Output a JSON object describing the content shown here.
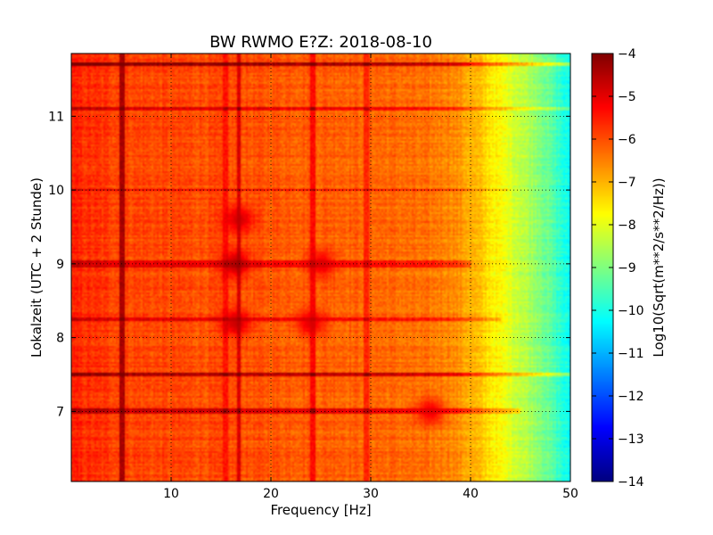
{
  "chart_data": {
    "type": "heatmap",
    "title": "BW RWMO E?Z: 2018-08-10",
    "xlabel": "Frequency [Hz]",
    "ylabel": "Lokalzeit (UTC + 2 Stunde)",
    "xlim": [
      0,
      50
    ],
    "ylim": [
      11.85,
      6.05
    ],
    "y_inverted": true,
    "x_ticks": [
      10,
      20,
      30,
      40,
      50
    ],
    "x_tick_labels": [
      "10",
      "20",
      "30",
      "40",
      "50"
    ],
    "y_ticks": [
      7,
      8,
      9,
      10,
      11
    ],
    "y_tick_labels": [
      "7",
      "8",
      "9",
      "10",
      "11"
    ],
    "grid": true,
    "colormap": "jet",
    "colorbar": {
      "label": "Log10(Sqrt(m**2/s**2/Hz))",
      "min": -14,
      "max": -4,
      "ticks": [
        -4,
        -5,
        -6,
        -7,
        -8,
        -9,
        -10,
        -11,
        -12,
        -13,
        -14
      ],
      "tick_labels": [
        "−4",
        "−5",
        "−6",
        "−7",
        "−8",
        "−9",
        "−10",
        "−11",
        "−12",
        "−13",
        "−14"
      ]
    },
    "features": {
      "base_level_low_freq": -5.9,
      "rolloff_profile": [
        [
          0,
          -5.6
        ],
        [
          5,
          -5.9
        ],
        [
          30,
          -6.2
        ],
        [
          38,
          -6.5
        ],
        [
          41,
          -7.2
        ],
        [
          43,
          -7.8
        ],
        [
          45,
          -8.3
        ],
        [
          47,
          -8.9
        ],
        [
          49,
          -9.8
        ],
        [
          50,
          -10.3
        ]
      ],
      "vertical_lines_hz": [
        {
          "f": 5.1,
          "level": -4.4
        },
        {
          "f": 15.5,
          "level": -5.4
        },
        {
          "f": 16.8,
          "level": -4.9
        },
        {
          "f": 24.2,
          "level": -5.3
        },
        {
          "f": 29.5,
          "level": -5.6
        }
      ],
      "horizontal_bands": [
        {
          "t": 7.0,
          "width": 0.03,
          "delta": 1.2,
          "fmax": 45
        },
        {
          "t": 7.5,
          "width": 0.02,
          "delta": 1.5,
          "fmax": 50
        },
        {
          "t": 8.25,
          "width": 0.02,
          "delta": 0.9,
          "fmax": 43
        },
        {
          "t": 9.0,
          "width": 0.05,
          "delta": 0.8,
          "fmax": 40
        },
        {
          "t": 10.0,
          "width": 0.02,
          "delta": 0.9,
          "fmax": 44
        },
        {
          "t": 11.1,
          "width": 0.02,
          "delta": 1.0,
          "fmax": 50
        },
        {
          "t": 11.7,
          "width": 0.02,
          "delta": 1.8,
          "fmax": 50
        }
      ],
      "hotspots": [
        {
          "f": 16.5,
          "t": 8.2,
          "level": -4.5
        },
        {
          "f": 16.5,
          "t": 9.0,
          "level": -4.3
        },
        {
          "f": 16.8,
          "t": 9.6,
          "level": -4.6
        },
        {
          "f": 24.0,
          "t": 8.2,
          "level": -4.8
        },
        {
          "f": 25.0,
          "t": 9.0,
          "level": -4.8
        },
        {
          "f": 36.0,
          "t": 7.0,
          "level": -4.9
        }
      ]
    }
  }
}
